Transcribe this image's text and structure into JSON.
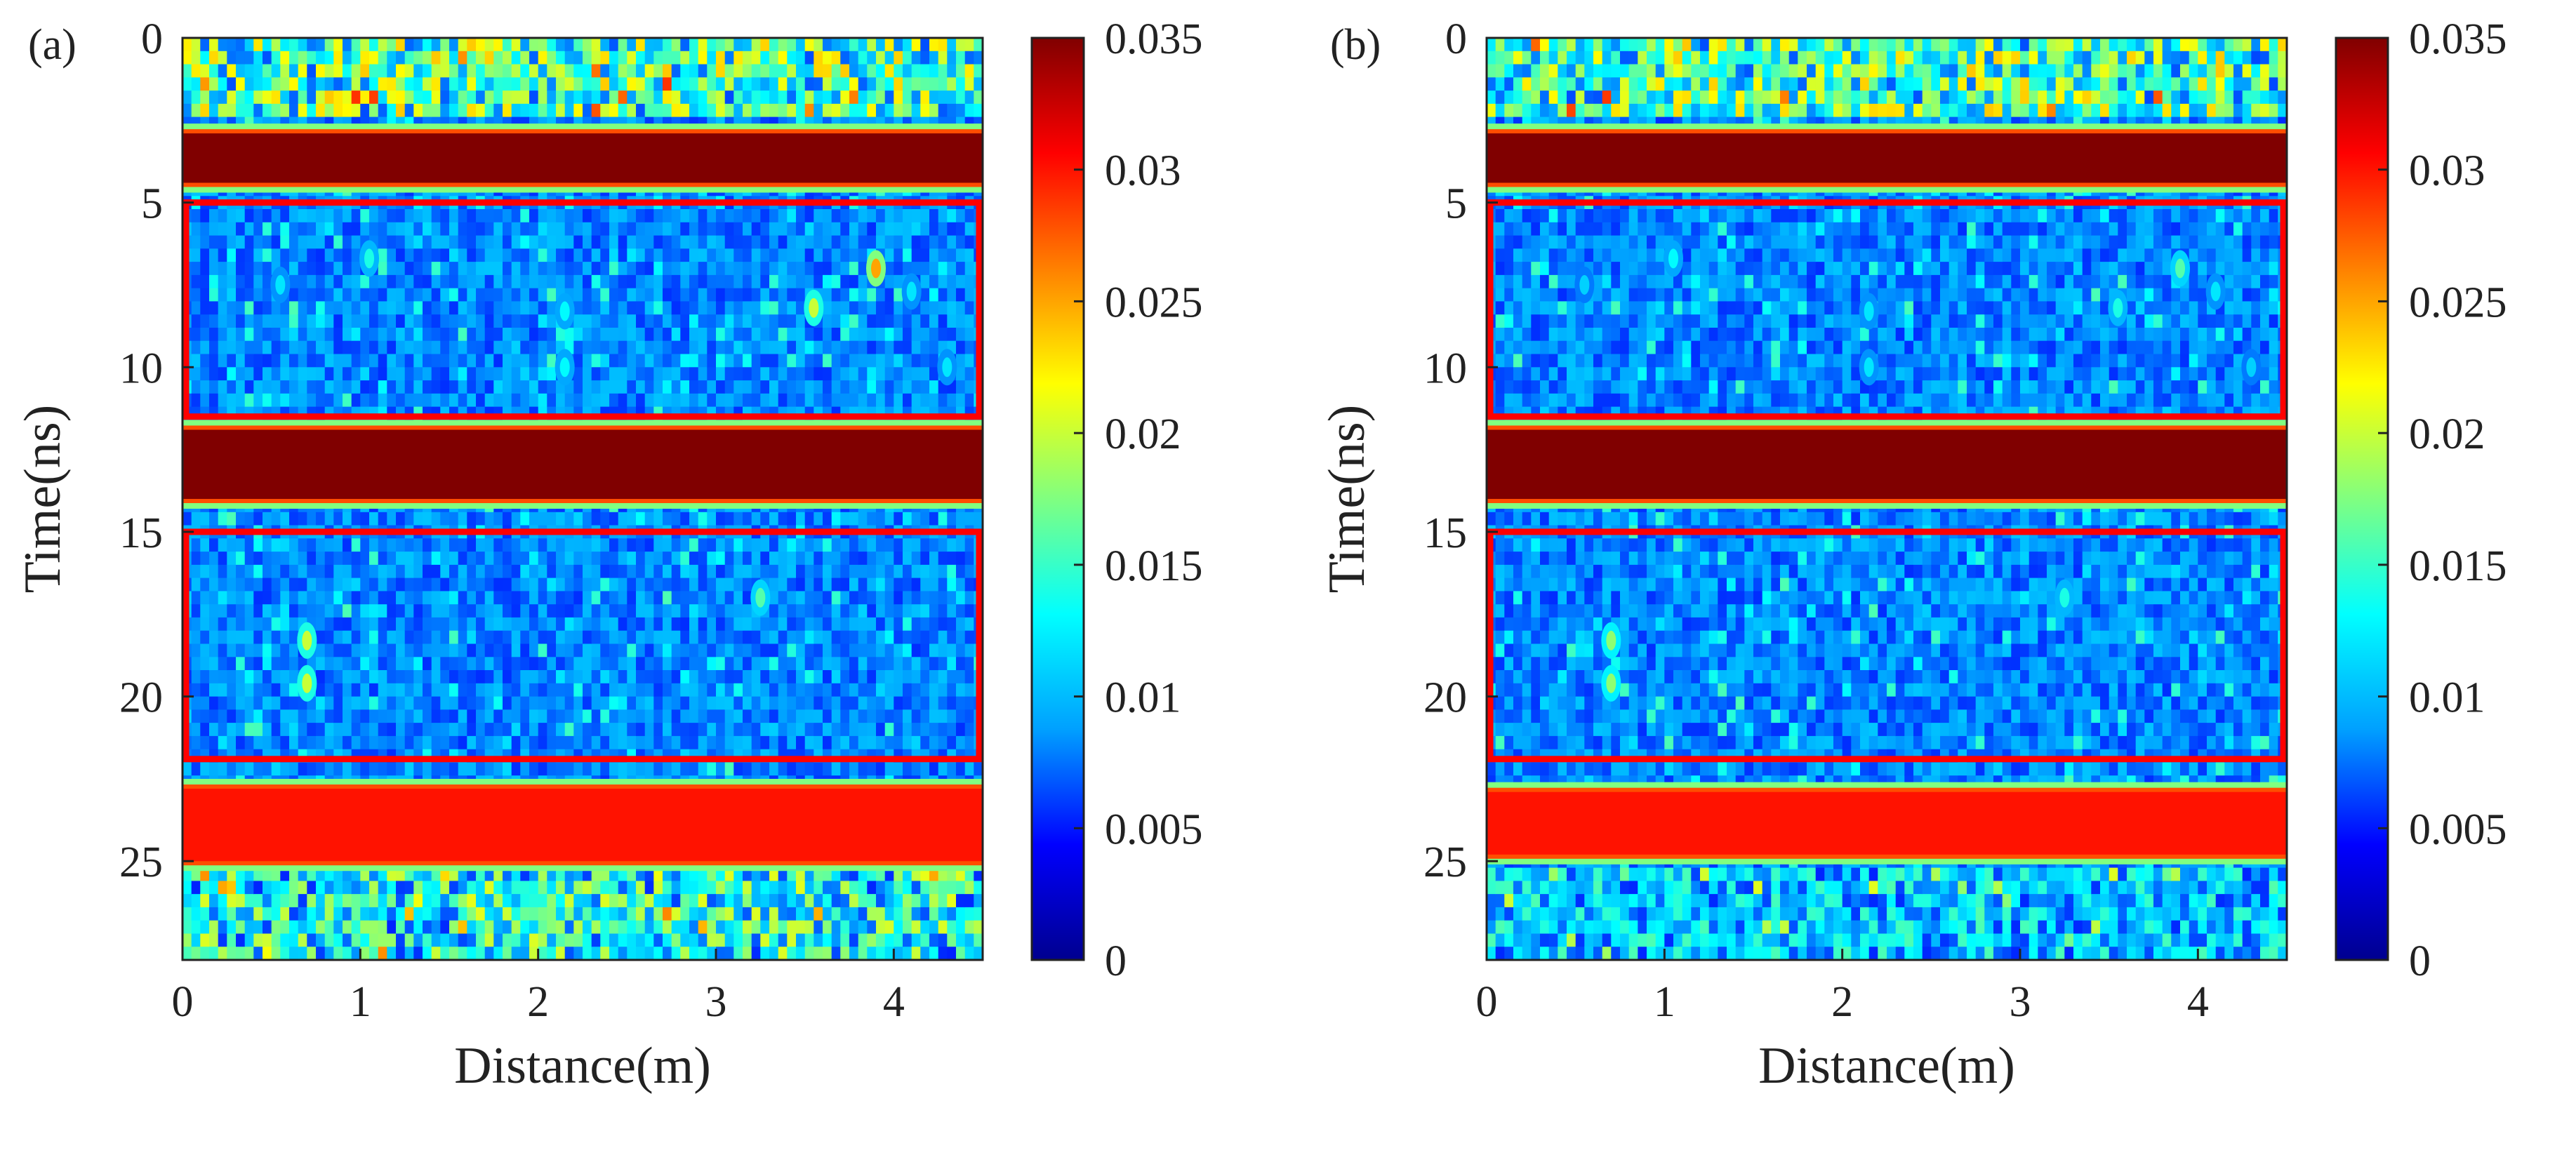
{
  "figure": {
    "colorbar_colors": [
      "#00008f",
      "#0000ff",
      "#00a0ff",
      "#00ffff",
      "#80ff80",
      "#ffff00",
      "#ff8000",
      "#ff0000",
      "#800000"
    ]
  },
  "chart_data": [
    {
      "type": "heatmap",
      "panel_label": "(a)",
      "title": "",
      "xlabel": "Distance(m)",
      "ylabel": "Time(ns)",
      "xlim": [
        0,
        4.5
      ],
      "ylim": [
        0,
        28
      ],
      "y_reversed": true,
      "xticks": [
        0,
        1,
        2,
        3,
        4
      ],
      "xtick_labels": [
        "0",
        "1",
        "2",
        "3",
        "4"
      ],
      "yticks": [
        0,
        5,
        10,
        15,
        20,
        25
      ],
      "ytick_labels": [
        "0",
        "5",
        "10",
        "15",
        "20",
        "25"
      ],
      "colorbar": {
        "range": [
          0,
          0.035
        ],
        "ticks": [
          0,
          0.005,
          0.01,
          0.015,
          0.02,
          0.025,
          0.03,
          0.035
        ],
        "tick_labels": [
          "0",
          "0.005",
          "0.01",
          "0.015",
          "0.02",
          "0.025",
          "0.03",
          "0.035"
        ]
      },
      "saturated_bands": [
        {
          "t_start": 2.9,
          "t_end": 4.4,
          "value": 0.035
        },
        {
          "t_start": 11.9,
          "t_end": 14.0,
          "value": 0.035
        },
        {
          "t_start": 22.8,
          "t_end": 25.0,
          "value": 0.03
        }
      ],
      "highlight_boxes": [
        {
          "x_range": [
            0,
            4.5
          ],
          "t_range": [
            5,
            11.5
          ],
          "color": "#ff0000"
        },
        {
          "x_range": [
            0,
            4.5
          ],
          "t_range": [
            15,
            21.9
          ],
          "color": "#ff0000"
        }
      ],
      "point_reflectors": [
        {
          "x": 0.55,
          "t": 7.5,
          "value": 0.012
        },
        {
          "x": 1.05,
          "t": 6.7,
          "value": 0.014
        },
        {
          "x": 2.15,
          "t": 8.3,
          "value": 0.013
        },
        {
          "x": 2.15,
          "t": 10.0,
          "value": 0.013
        },
        {
          "x": 3.55,
          "t": 8.2,
          "value": 0.02
        },
        {
          "x": 3.9,
          "t": 7.0,
          "value": 0.025
        },
        {
          "x": 4.1,
          "t": 7.7,
          "value": 0.012
        },
        {
          "x": 4.3,
          "t": 10.0,
          "value": 0.012
        },
        {
          "x": 0.7,
          "t": 18.3,
          "value": 0.02
        },
        {
          "x": 0.7,
          "t": 19.6,
          "value": 0.02
        },
        {
          "x": 3.25,
          "t": 17.0,
          "value": 0.016
        }
      ]
    },
    {
      "type": "heatmap",
      "panel_label": "(b)",
      "title": "",
      "xlabel": "Distance(m)",
      "ylabel": "Time(ns)",
      "xlim": [
        0,
        4.5
      ],
      "ylim": [
        0,
        28
      ],
      "y_reversed": true,
      "xticks": [
        0,
        1,
        2,
        3,
        4
      ],
      "xtick_labels": [
        "0",
        "1",
        "2",
        "3",
        "4"
      ],
      "yticks": [
        0,
        5,
        10,
        15,
        20,
        25
      ],
      "ytick_labels": [
        "0",
        "5",
        "10",
        "15",
        "20",
        "25"
      ],
      "colorbar": {
        "range": [
          0,
          0.035
        ],
        "ticks": [
          0,
          0.005,
          0.01,
          0.015,
          0.02,
          0.025,
          0.03,
          0.035
        ],
        "tick_labels": [
          "0",
          "0.005",
          "0.01",
          "0.015",
          "0.02",
          "0.025",
          "0.03",
          "0.035"
        ]
      },
      "saturated_bands": [
        {
          "t_start": 2.9,
          "t_end": 4.4,
          "value": 0.035
        },
        {
          "t_start": 11.9,
          "t_end": 14.0,
          "value": 0.035
        },
        {
          "t_start": 22.9,
          "t_end": 24.8,
          "value": 0.03
        }
      ],
      "highlight_boxes": [
        {
          "x_range": [
            0,
            4.5
          ],
          "t_range": [
            5,
            11.5
          ],
          "color": "#ff0000"
        },
        {
          "x_range": [
            0,
            4.5
          ],
          "t_range": [
            15,
            21.9
          ],
          "color": "#ff0000"
        }
      ],
      "point_reflectors": [
        {
          "x": 0.55,
          "t": 7.5,
          "value": 0.011
        },
        {
          "x": 1.05,
          "t": 6.7,
          "value": 0.013
        },
        {
          "x": 2.15,
          "t": 8.3,
          "value": 0.012
        },
        {
          "x": 2.15,
          "t": 10.0,
          "value": 0.012
        },
        {
          "x": 3.55,
          "t": 8.2,
          "value": 0.014
        },
        {
          "x": 3.9,
          "t": 7.0,
          "value": 0.016
        },
        {
          "x": 4.1,
          "t": 7.7,
          "value": 0.012
        },
        {
          "x": 4.3,
          "t": 10.0,
          "value": 0.011
        },
        {
          "x": 0.7,
          "t": 18.3,
          "value": 0.018
        },
        {
          "x": 0.7,
          "t": 19.6,
          "value": 0.018
        },
        {
          "x": 3.25,
          "t": 17.0,
          "value": 0.014
        }
      ]
    }
  ]
}
